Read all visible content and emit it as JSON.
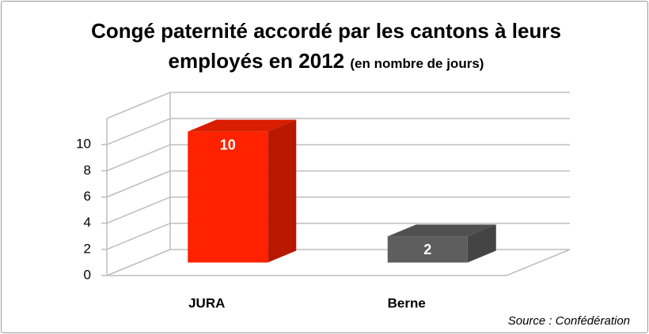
{
  "chart_data": {
    "type": "bar3d",
    "title": "Congé paternité accordé par les cantons à leurs employés en 2012",
    "subtitle": "(en nombre de jours)",
    "categories": [
      "JURA",
      "Berne"
    ],
    "values": [
      10,
      2
    ],
    "colors": [
      "#ff2200",
      "#5e5e5e"
    ],
    "ylim": [
      0,
      12
    ],
    "yticks": [
      0,
      2,
      4,
      6,
      8,
      10
    ],
    "grid": true,
    "source": "Source : Confédération"
  }
}
